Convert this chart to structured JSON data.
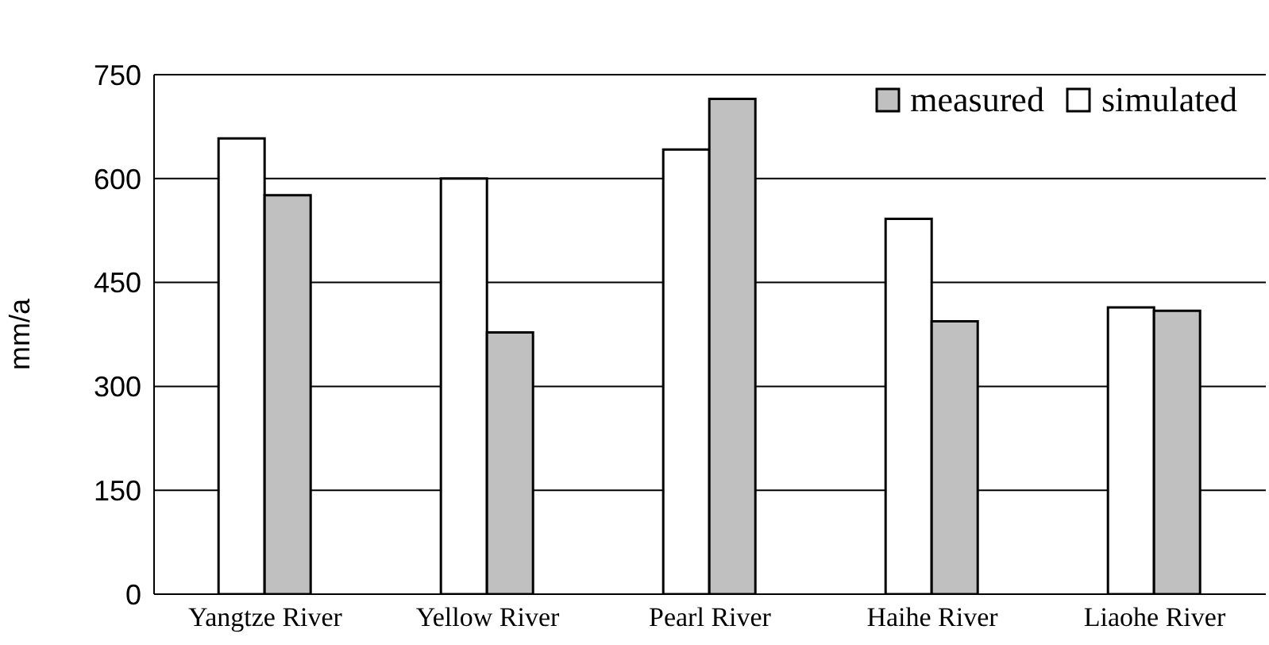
{
  "chart_data": {
    "type": "bar",
    "ylabel": "mm/a",
    "categories": [
      "Yangtze River",
      "Yellow River",
      "Pearl River",
      "Haihe River",
      "Liaohe River"
    ],
    "series": [
      {
        "name": "simulated",
        "color": "#ffffff",
        "values": [
          658,
          600,
          642,
          542,
          414
        ]
      },
      {
        "name": "measured",
        "color": "#c0c0c0",
        "values": [
          576,
          378,
          715,
          394,
          409
        ]
      }
    ],
    "ylim": [
      0,
      750
    ],
    "yticks": [
      0,
      150,
      300,
      450,
      600,
      750
    ],
    "grid": "y",
    "legend": "top right"
  }
}
